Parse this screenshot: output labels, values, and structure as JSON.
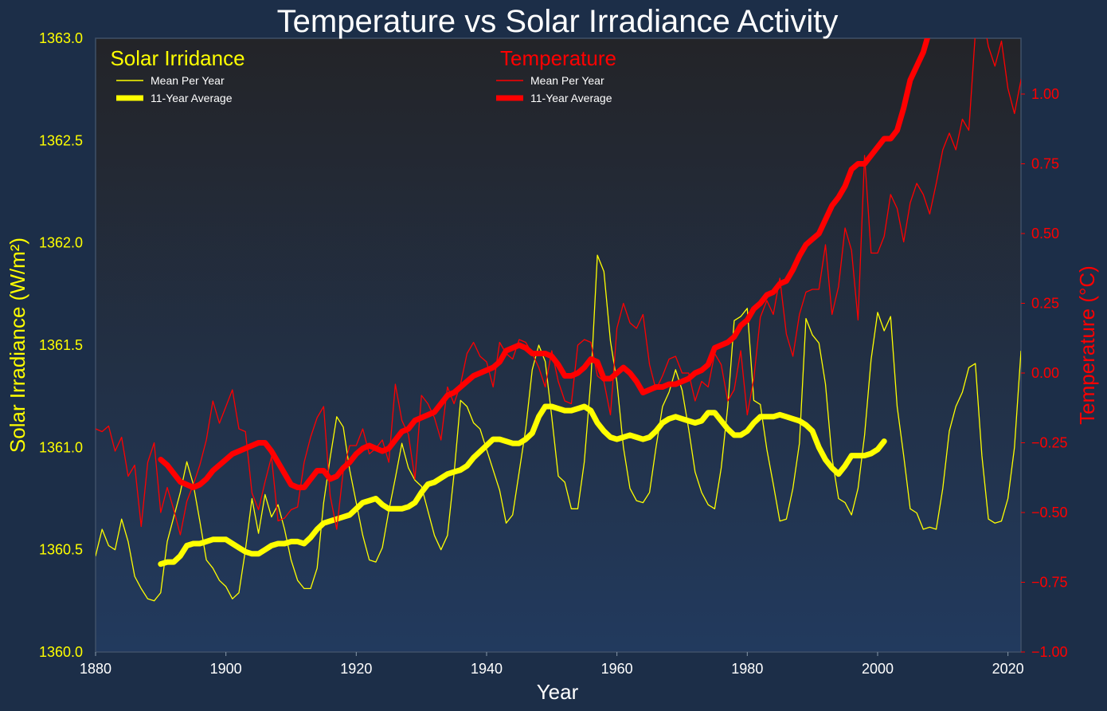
{
  "chart_data": {
    "type": "line",
    "title": "Temperature vs Solar Irradiance Activity",
    "xlabel": "Year",
    "ylabel_left": "Solar Irradiance (W/m²)",
    "ylabel_right": "Temperature (°C)",
    "xlim": [
      1880,
      2022
    ],
    "ylim_left": [
      1360.0,
      1363.0
    ],
    "ylim_right": [
      -1.0,
      1.2
    ],
    "xticks": [
      "1880",
      "1900",
      "1920",
      "1940",
      "1960",
      "1980",
      "2000",
      "2020"
    ],
    "yticks_left": [
      "1360.0",
      "1360.5",
      "1361.0",
      "1361.5",
      "1362.0",
      "1362.5",
      "1363.0"
    ],
    "yticks_right": [
      "−1.00",
      "−0.75",
      "−0.50",
      "−0.25",
      "0.00",
      "0.25",
      "0.50",
      "0.75",
      "1.00"
    ],
    "grid": false,
    "legends": [
      {
        "title": "Solar Irridance",
        "entries": [
          "Mean Per Year",
          "11-Year Average"
        ],
        "placement": "top-left",
        "color": "#ffff00"
      },
      {
        "title": "Temperature",
        "entries": [
          "Mean Per Year",
          "11-Year Average"
        ],
        "placement": "top-center",
        "color": "#ff0000"
      }
    ],
    "colors": {
      "solar": "#ffff00",
      "temperature": "#ff0000",
      "background": "#1c2e48"
    },
    "series": [
      {
        "axis": "left",
        "style": "thin",
        "color": "#ffff00",
        "x_start": 1880,
        "x_step": 1,
        "values": [
          1360.47,
          1360.6,
          1360.52,
          1360.5,
          1360.65,
          1360.54,
          1360.37,
          1360.31,
          1360.26,
          1360.25,
          1360.29,
          1360.54,
          1360.66,
          1360.78,
          1360.93,
          1360.82,
          1360.64,
          1360.45,
          1360.41,
          1360.35,
          1360.32,
          1360.26,
          1360.29,
          1360.5,
          1360.75,
          1360.58,
          1360.77,
          1360.66,
          1360.72,
          1360.6,
          1360.45,
          1360.35,
          1360.31,
          1360.31,
          1360.41,
          1360.73,
          1360.95,
          1361.15,
          1361.1,
          1360.89,
          1360.73,
          1360.57,
          1360.45,
          1360.44,
          1360.51,
          1360.69,
          1360.85,
          1361.02,
          1360.9,
          1360.84,
          1360.81,
          1360.69,
          1360.57,
          1360.5,
          1360.57,
          1360.87,
          1361.23,
          1361.2,
          1361.12,
          1361.09,
          1360.99,
          1360.89,
          1360.79,
          1360.63,
          1360.67,
          1360.88,
          1361.09,
          1361.38,
          1361.5,
          1361.42,
          1361.15,
          1360.86,
          1360.83,
          1360.7,
          1360.7,
          1360.93,
          1361.33,
          1361.94,
          1361.86,
          1361.52,
          1361.32,
          1361.0,
          1360.8,
          1360.74,
          1360.73,
          1360.78,
          1361.0,
          1361.2,
          1361.27,
          1361.38,
          1361.28,
          1361.09,
          1360.88,
          1360.78,
          1360.72,
          1360.7,
          1360.9,
          1361.2,
          1361.62,
          1361.64,
          1361.68,
          1361.23,
          1361.21,
          1360.99,
          1360.82,
          1360.64,
          1360.65,
          1360.8,
          1361.02,
          1361.63,
          1361.55,
          1361.51,
          1361.31,
          1360.95,
          1360.75,
          1360.73,
          1360.67,
          1360.8,
          1361.06,
          1361.43,
          1361.66,
          1361.57,
          1361.64,
          1361.2,
          1360.96,
          1360.7,
          1360.68,
          1360.6,
          1360.61,
          1360.6,
          1360.8,
          1361.08,
          1361.2,
          1361.27,
          1361.39,
          1361.41,
          1360.96,
          1360.65,
          1360.63,
          1360.64,
          1360.75,
          1361.0,
          1361.47
        ]
      },
      {
        "axis": "left",
        "style": "thick",
        "color": "#ffff00",
        "x_start": 1890,
        "x_step": 1,
        "values": [
          1360.43,
          1360.44,
          1360.44,
          1360.47,
          1360.52,
          1360.53,
          1360.53,
          1360.54,
          1360.55,
          1360.55,
          1360.55,
          1360.53,
          1360.51,
          1360.49,
          1360.48,
          1360.48,
          1360.5,
          1360.52,
          1360.53,
          1360.53,
          1360.54,
          1360.54,
          1360.53,
          1360.56,
          1360.6,
          1360.63,
          1360.64,
          1360.65,
          1360.66,
          1360.67,
          1360.7,
          1360.73,
          1360.74,
          1360.75,
          1360.72,
          1360.7,
          1360.7,
          1360.7,
          1360.71,
          1360.73,
          1360.78,
          1360.82,
          1360.83,
          1360.85,
          1360.87,
          1360.88,
          1360.89,
          1360.91,
          1360.95,
          1360.98,
          1361.01,
          1361.04,
          1361.04,
          1361.03,
          1361.02,
          1361.02,
          1361.04,
          1361.07,
          1361.15,
          1361.2,
          1361.2,
          1361.19,
          1361.18,
          1361.18,
          1361.19,
          1361.2,
          1361.18,
          1361.12,
          1361.08,
          1361.05,
          1361.04,
          1361.05,
          1361.06,
          1361.05,
          1361.04,
          1361.05,
          1361.08,
          1361.12,
          1361.14,
          1361.15,
          1361.14,
          1361.13,
          1361.12,
          1361.13,
          1361.17,
          1361.17,
          1361.13,
          1361.09,
          1361.06,
          1361.06,
          1361.08,
          1361.12,
          1361.15,
          1361.15,
          1361.15,
          1361.16,
          1361.15,
          1361.14,
          1361.13,
          1361.11,
          1361.08,
          1361.0,
          1360.94,
          1360.9,
          1360.87,
          1360.91,
          1360.96,
          1360.96,
          1360.96,
          1360.97,
          1360.99,
          1361.03
        ]
      },
      {
        "axis": "right",
        "style": "thin",
        "color": "#ff0000",
        "x_start": 1880,
        "x_step": 1,
        "values": [
          -0.2,
          -0.21,
          -0.19,
          -0.28,
          -0.23,
          -0.37,
          -0.33,
          -0.55,
          -0.32,
          -0.25,
          -0.5,
          -0.41,
          -0.49,
          -0.58,
          -0.46,
          -0.4,
          -0.33,
          -0.24,
          -0.1,
          -0.18,
          -0.12,
          -0.06,
          -0.2,
          -0.21,
          -0.43,
          -0.49,
          -0.39,
          -0.3,
          -0.53,
          -0.52,
          -0.49,
          -0.48,
          -0.32,
          -0.23,
          -0.16,
          -0.12,
          -0.44,
          -0.56,
          -0.35,
          -0.26,
          -0.26,
          -0.2,
          -0.29,
          -0.27,
          -0.24,
          -0.32,
          -0.04,
          -0.17,
          -0.22,
          -0.38,
          -0.08,
          -0.11,
          -0.16,
          -0.24,
          -0.05,
          -0.11,
          -0.04,
          0.07,
          0.11,
          0.06,
          0.04,
          -0.05,
          0.11,
          0.07,
          0.05,
          0.12,
          0.11,
          0.07,
          0.02,
          -0.05,
          0.08,
          -0.03,
          -0.1,
          -0.11,
          0.1,
          0.12,
          0.11,
          -0.01,
          -0.03,
          -0.15,
          0.16,
          0.25,
          0.18,
          0.16,
          0.21,
          0.03,
          -0.06,
          -0.01,
          0.05,
          0.06,
          0.0,
          0.0,
          -0.1,
          -0.03,
          -0.05,
          0.07,
          0.03,
          -0.1,
          -0.06,
          0.08,
          -0.15,
          -0.02,
          0.2,
          0.26,
          0.21,
          0.34,
          0.14,
          0.06,
          0.21,
          0.29,
          0.3,
          0.3,
          0.46,
          0.21,
          0.31,
          0.52,
          0.44,
          0.19,
          0.78,
          0.43,
          0.43,
          0.49,
          0.64,
          0.59,
          0.47,
          0.61,
          0.68,
          0.64,
          0.57,
          0.68,
          0.8,
          0.86,
          0.8,
          0.91,
          0.87,
          1.22,
          1.3,
          1.17,
          1.1,
          1.19,
          1.02,
          0.93,
          1.05,
          1.14
        ]
      },
      {
        "axis": "right",
        "style": "thick",
        "color": "#ff0000",
        "x_start": 1890,
        "x_step": 1,
        "values": [
          -0.31,
          -0.33,
          -0.36,
          -0.39,
          -0.4,
          -0.41,
          -0.4,
          -0.38,
          -0.35,
          -0.33,
          -0.31,
          -0.29,
          -0.28,
          -0.27,
          -0.26,
          -0.25,
          -0.25,
          -0.28,
          -0.32,
          -0.36,
          -0.4,
          -0.41,
          -0.41,
          -0.38,
          -0.35,
          -0.35,
          -0.38,
          -0.37,
          -0.34,
          -0.32,
          -0.29,
          -0.27,
          -0.26,
          -0.27,
          -0.28,
          -0.27,
          -0.24,
          -0.21,
          -0.2,
          -0.17,
          -0.16,
          -0.15,
          -0.14,
          -0.11,
          -0.08,
          -0.07,
          -0.05,
          -0.03,
          -0.01,
          0.0,
          0.01,
          0.02,
          0.04,
          0.08,
          0.09,
          0.1,
          0.09,
          0.07,
          0.07,
          0.07,
          0.06,
          0.03,
          -0.01,
          -0.01,
          0.0,
          0.02,
          0.05,
          0.04,
          -0.02,
          -0.02,
          0.0,
          0.02,
          0.0,
          -0.03,
          -0.07,
          -0.06,
          -0.05,
          -0.05,
          -0.04,
          -0.04,
          -0.03,
          -0.02,
          0.0,
          0.01,
          0.03,
          0.09,
          0.1,
          0.11,
          0.13,
          0.17,
          0.19,
          0.23,
          0.25,
          0.28,
          0.29,
          0.32,
          0.33,
          0.37,
          0.42,
          0.46,
          0.48,
          0.5,
          0.55,
          0.6,
          0.63,
          0.67,
          0.73,
          0.75,
          0.75,
          0.78,
          0.81,
          0.84,
          0.84,
          0.87,
          0.95,
          1.05,
          1.1,
          1.15,
          1.23,
          1.3
        ]
      }
    ]
  }
}
